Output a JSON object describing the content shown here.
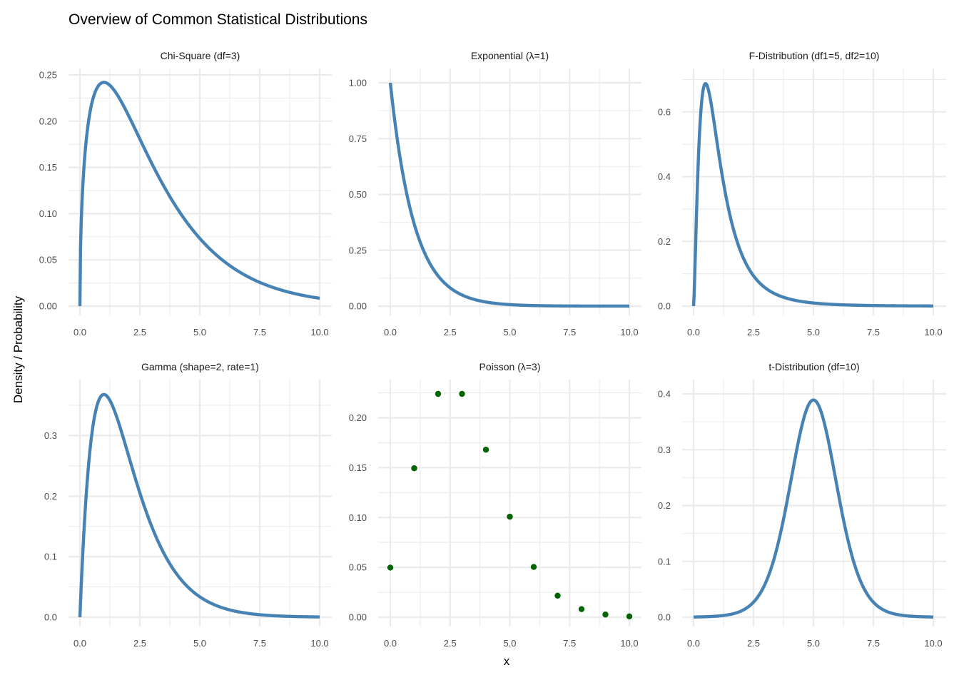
{
  "figure": {
    "title": "Overview of Common Statistical Distributions",
    "xlabel": "x",
    "ylabel": "Density / Probability"
  },
  "colors": {
    "line": "#4682b4",
    "points": "#006400",
    "grid": "#ebebeb"
  },
  "chart_data": [
    {
      "type": "line",
      "title": "Chi-Square (df=3)",
      "formula": "chisq",
      "params": {
        "df": 3
      },
      "xlim": [
        0,
        10
      ],
      "ylim": [
        0,
        0.25
      ],
      "xticks": [
        "0.0",
        "2.5",
        "5.0",
        "7.5",
        "10.0"
      ],
      "xtick_values": [
        0,
        2.5,
        5,
        7.5,
        10
      ],
      "yticks": [
        "0.00",
        "0.05",
        "0.10",
        "0.15",
        "0.20",
        "0.25"
      ],
      "ytick_values": [
        0,
        0.05,
        0.1,
        0.15,
        0.2,
        0.25
      ],
      "series": [
        {
          "x_range": [
            0,
            10
          ],
          "peak": {
            "x": 1,
            "y": 0.242
          }
        }
      ]
    },
    {
      "type": "line",
      "title": "Exponential (λ=1)",
      "formula": "exp",
      "params": {
        "rate": 1
      },
      "xlim": [
        0,
        10
      ],
      "ylim": [
        0,
        1.0
      ],
      "xticks": [
        "0.0",
        "2.5",
        "5.0",
        "7.5",
        "10.0"
      ],
      "xtick_values": [
        0,
        2.5,
        5,
        7.5,
        10
      ],
      "yticks": [
        "0.00",
        "0.25",
        "0.50",
        "0.75",
        "1.00"
      ],
      "ytick_values": [
        0,
        0.25,
        0.5,
        0.75,
        1.0
      ],
      "series": [
        {
          "x_range": [
            0,
            10
          ],
          "peak": {
            "x": 0,
            "y": 1.0
          }
        }
      ]
    },
    {
      "type": "line",
      "title": "F-Distribution (df1=5, df2=10)",
      "formula": "f",
      "params": {
        "df1": 5,
        "df2": 10
      },
      "xlim": [
        0,
        10
      ],
      "ylim": [
        0,
        0.69
      ],
      "xticks": [
        "0.0",
        "2.5",
        "5.0",
        "7.5",
        "10.0"
      ],
      "xtick_values": [
        0,
        2.5,
        5,
        7.5,
        10
      ],
      "yticks": [
        "0.0",
        "0.2",
        "0.4",
        "0.6"
      ],
      "ytick_values": [
        0,
        0.2,
        0.4,
        0.6
      ],
      "series": [
        {
          "x_range": [
            0,
            10
          ],
          "peak": {
            "x": 0.5,
            "y": 0.687
          }
        }
      ]
    },
    {
      "type": "line",
      "title": "Gamma (shape=2, rate=1)",
      "formula": "gamma",
      "params": {
        "shape": 2,
        "rate": 1
      },
      "xlim": [
        0,
        10
      ],
      "ylim": [
        0,
        0.37
      ],
      "xticks": [
        "0.0",
        "2.5",
        "5.0",
        "7.5",
        "10.0"
      ],
      "xtick_values": [
        0,
        2.5,
        5,
        7.5,
        10
      ],
      "yticks": [
        "0.0",
        "0.1",
        "0.2",
        "0.3"
      ],
      "ytick_values": [
        0,
        0.1,
        0.2,
        0.3
      ],
      "series": [
        {
          "x_range": [
            0,
            10
          ],
          "peak": {
            "x": 1,
            "y": 0.368
          }
        }
      ]
    },
    {
      "type": "scatter",
      "title": "Poisson (λ=3)",
      "params": {
        "lambda": 3
      },
      "xlim": [
        0,
        10
      ],
      "ylim": [
        0,
        0.224
      ],
      "xticks": [
        "0.0",
        "2.5",
        "5.0",
        "7.5",
        "10.0"
      ],
      "xtick_values": [
        0,
        2.5,
        5,
        7.5,
        10
      ],
      "yticks": [
        "0.00",
        "0.05",
        "0.10",
        "0.15",
        "0.20"
      ],
      "ytick_values": [
        0,
        0.05,
        0.1,
        0.15,
        0.2
      ],
      "x": [
        0,
        1,
        2,
        3,
        4,
        5,
        6,
        7,
        8,
        9,
        10
      ],
      "y": [
        0.0498,
        0.1494,
        0.224,
        0.224,
        0.168,
        0.1008,
        0.0504,
        0.0216,
        0.0081,
        0.0027,
        0.0008
      ]
    },
    {
      "type": "line",
      "title": "t-Distribution (df=10)",
      "formula": "t",
      "params": {
        "df": 10,
        "center": 5
      },
      "xlim": [
        0,
        10
      ],
      "ylim": [
        0,
        0.4
      ],
      "xticks": [
        "0.0",
        "2.5",
        "5.0",
        "7.5",
        "10.0"
      ],
      "xtick_values": [
        0,
        2.5,
        5,
        7.5,
        10
      ],
      "yticks": [
        "0.0",
        "0.1",
        "0.2",
        "0.3",
        "0.4"
      ],
      "ytick_values": [
        0,
        0.1,
        0.2,
        0.3,
        0.4
      ],
      "series": [
        {
          "x_range": [
            0,
            10
          ],
          "peak": {
            "x": 5,
            "y": 0.389
          }
        }
      ]
    }
  ]
}
